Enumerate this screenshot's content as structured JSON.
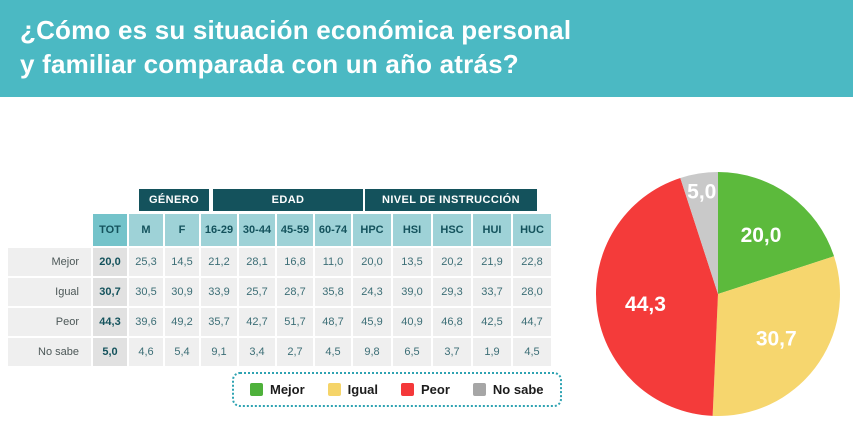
{
  "banner": {
    "title_line1": "¿Cómo es su situación económica personal",
    "title_line2": "y familiar comparada con un año atrás?"
  },
  "colors": {
    "banner_teal": "#4bb9c3",
    "dark_teal": "#14525c",
    "subheader_teal": "#9ed2d7",
    "tot_header_teal": "#74c3ca",
    "cell_gray": "#efefef",
    "tot_cell_gray": "#e1e1e1",
    "legend_border_teal": "#2fa3b2"
  },
  "table": {
    "groups": [
      {
        "label": "GÉNERO"
      },
      {
        "label": "EDAD"
      },
      {
        "label": "NIVEL DE INSTRUCCIÓN"
      }
    ],
    "columns": [
      "TOT",
      "M",
      "F",
      "16-29",
      "30-44",
      "45-59",
      "60-74",
      "HPC",
      "HSI",
      "HSC",
      "HUI",
      "HUC"
    ],
    "rows": [
      {
        "label": "Mejor",
        "values": [
          "20,0",
          "25,3",
          "14,5",
          "21,2",
          "28,1",
          "16,8",
          "11,0",
          "20,0",
          "13,5",
          "20,2",
          "21,9",
          "22,8"
        ]
      },
      {
        "label": "Igual",
        "values": [
          "30,7",
          "30,5",
          "30,9",
          "33,9",
          "25,7",
          "28,7",
          "35,8",
          "24,3",
          "39,0",
          "29,3",
          "33,7",
          "28,0"
        ]
      },
      {
        "label": "Peor",
        "values": [
          "44,3",
          "39,6",
          "49,2",
          "35,7",
          "42,7",
          "51,7",
          "48,7",
          "45,9",
          "40,9",
          "46,8",
          "42,5",
          "44,7"
        ]
      },
      {
        "label": "No sabe",
        "values": [
          "5,0",
          "4,6",
          "5,4",
          "9,1",
          "3,4",
          "2,7",
          "4,5",
          "9,8",
          "6,5",
          "3,7",
          "1,9",
          "4,5"
        ]
      }
    ]
  },
  "legend": {
    "items": [
      {
        "label": "Mejor",
        "color": "#4eb13b"
      },
      {
        "label": "Igual",
        "color": "#f5d469"
      },
      {
        "label": "Peor",
        "color": "#f4383a"
      },
      {
        "label": "No sabe",
        "color": "#a6a6a6"
      }
    ]
  },
  "chart_data": {
    "type": "pie",
    "labels": [
      "Mejor",
      "Igual",
      "Peor",
      "No sabe"
    ],
    "values": [
      20.0,
      30.7,
      44.3,
      5.0
    ],
    "display_values": [
      "20,0",
      "30,7",
      "44,3",
      "5,0"
    ],
    "colors": [
      "#5cba3c",
      "#f6d66e",
      "#f43b3a",
      "#c9c9c9"
    ],
    "start_angle_deg": 0,
    "direction": "clockwise",
    "legend_position": "below-table"
  }
}
